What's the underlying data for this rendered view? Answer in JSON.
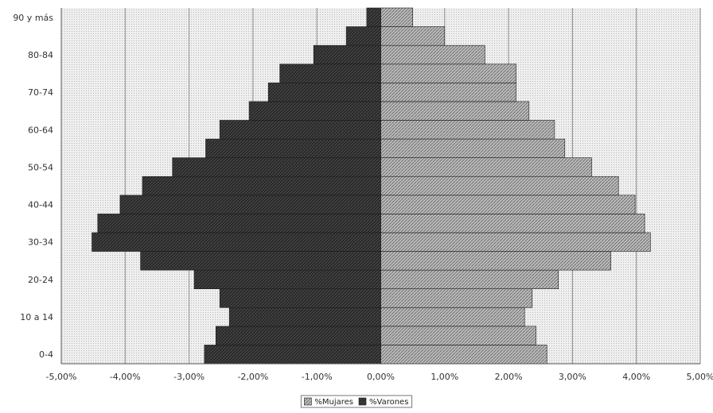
{
  "chart_data": {
    "type": "bar",
    "orientation": "horizontal",
    "title": "",
    "xlabel": "",
    "ylabel": "",
    "xlim": [
      -5.0,
      5.0
    ],
    "x_ticks": [
      "-5,00%",
      "-4,00%",
      "-3,00%",
      "-2,00%",
      "-1,00%",
      "0,00%",
      "1,00%",
      "2,00%",
      "3,00%",
      "4,00%",
      "5,00%"
    ],
    "y_tick_labels": [
      "0-4",
      "10 a 14",
      "20-24",
      "30-34",
      "40-44",
      "50-54",
      "60-64",
      "70-74",
      "80-84",
      "90 y más"
    ],
    "categories": [
      "0-4",
      "",
      "10 a 14",
      "",
      "20-24",
      "",
      "30-34",
      "",
      "40-44",
      "",
      "50-54",
      "",
      "60-64",
      "",
      "70-74",
      "",
      "80-84",
      "",
      "90 y más"
    ],
    "series": [
      {
        "name": "%Mujares",
        "color": "#9a9a9a",
        "values": [
          2.6,
          2.43,
          2.25,
          2.37,
          2.78,
          3.6,
          4.22,
          4.13,
          3.98,
          3.72,
          3.3,
          2.88,
          2.72,
          2.32,
          2.12,
          2.12,
          1.63,
          1.0,
          0.5
        ]
      },
      {
        "name": "%Varones",
        "color": "#2f2f2f",
        "values": [
          -2.76,
          -2.58,
          -2.37,
          -2.52,
          -2.92,
          -3.76,
          -4.52,
          -4.43,
          -4.08,
          -3.73,
          -3.26,
          -2.74,
          -2.52,
          -2.06,
          -1.76,
          -1.58,
          -1.05,
          -0.54,
          -0.22
        ]
      }
    ],
    "grid": true,
    "legend_position": "bottom",
    "plot_background": "#e8e8e8"
  },
  "legend": {
    "items": [
      {
        "label": "%Mujares",
        "color": "#9a9a9a"
      },
      {
        "label": "%Varones",
        "color": "#2f2f2f"
      }
    ]
  }
}
